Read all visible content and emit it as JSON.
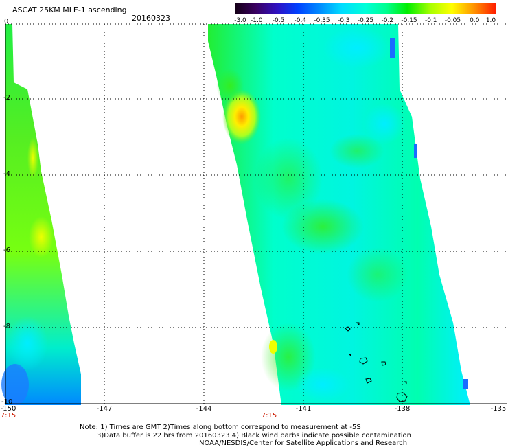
{
  "header": {
    "title": "ASCAT 25KM MLE-1 ascending",
    "date": "20160323"
  },
  "colorbar": {
    "labels": [
      "-3.0",
      "-1.0",
      "-0.5",
      "-0.4",
      "-0.35",
      "-0.3",
      "-0.25",
      "-0.2",
      "-0.15",
      "-0.1",
      "-0.05",
      "0.0",
      "1.0"
    ],
    "colors": [
      "#140014",
      "#4b006e",
      "#2010c8",
      "#0040ff",
      "#0090ff",
      "#00ddff",
      "#00ffd8",
      "#00ff90",
      "#00ee00",
      "#aaff00",
      "#ffff00",
      "#ff9900",
      "#ff1a00"
    ]
  },
  "map": {
    "y_ticks": [
      "0",
      "-2",
      "-4",
      "-6",
      "-8",
      "-10"
    ],
    "x_ticks": [
      "-150",
      "-147",
      "-144",
      "-141",
      "-138",
      "-135"
    ],
    "times": [
      "7:15",
      "7:15"
    ]
  },
  "footer": {
    "line1": "Note: 1) Times are GMT 2)Times along bottom correspond to measurement at -5S",
    "line2": "3)Data buffer is 22 hrs from 20160323 4) Black wind barbs indicate possible contamination",
    "line3": "NOAA/NESDIS/Center for Satellite Applications and Research"
  }
}
